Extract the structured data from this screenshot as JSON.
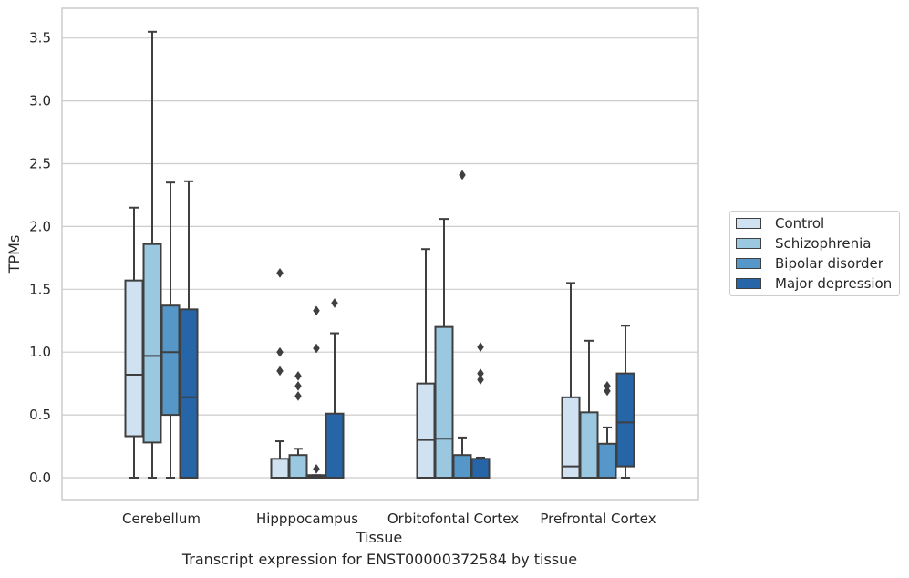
{
  "chart_data": {
    "type": "box",
    "title": "",
    "caption": "Transcript expression for ENST00000372584 by tissue",
    "xlabel": "Tissue",
    "ylabel": "TPMs",
    "ylim": [
      -0.17,
      3.68
    ],
    "yticks": [
      "0.0",
      "0.5",
      "1.0",
      "1.5",
      "2.0",
      "2.5",
      "3.0",
      "3.5"
    ],
    "grid": "horizontal",
    "legend_position": "right",
    "categories": [
      "Cerebellum",
      "Hipppocampus",
      "Orbitofontal Cortex",
      "Prefrontal Cortex"
    ],
    "series": [
      {
        "name": "Control",
        "color": "#d0e1f2",
        "boxes": [
          {
            "whislo": 0.0,
            "q1": 0.33,
            "med": 0.82,
            "q3": 1.57,
            "whishi": 2.15,
            "fliers": []
          },
          {
            "whislo": 0.0,
            "q1": 0.0,
            "med": 0.0,
            "q3": 0.15,
            "whishi": 0.29,
            "fliers": [
              0.85,
              1.0,
              1.63
            ]
          },
          {
            "whislo": 0.0,
            "q1": 0.0,
            "med": 0.3,
            "q3": 0.75,
            "whishi": 1.82,
            "fliers": []
          },
          {
            "whislo": 0.0,
            "q1": 0.0,
            "med": 0.09,
            "q3": 0.64,
            "whishi": 1.55,
            "fliers": []
          }
        ]
      },
      {
        "name": "Schizophrenia",
        "color": "#9ac8e0",
        "boxes": [
          {
            "whislo": 0.0,
            "q1": 0.28,
            "med": 0.97,
            "q3": 1.86,
            "whishi": 3.55,
            "fliers": []
          },
          {
            "whislo": 0.0,
            "q1": 0.0,
            "med": 0.0,
            "q3": 0.18,
            "whishi": 0.23,
            "fliers": [
              0.65,
              0.73,
              0.81
            ]
          },
          {
            "whislo": 0.0,
            "q1": 0.0,
            "med": 0.31,
            "q3": 1.2,
            "whishi": 2.06,
            "fliers": []
          },
          {
            "whislo": 0.0,
            "q1": 0.0,
            "med": 0.0,
            "q3": 0.52,
            "whishi": 1.09,
            "fliers": []
          }
        ]
      },
      {
        "name": "Bipolar disorder",
        "color": "#5597c8",
        "boxes": [
          {
            "whislo": 0.0,
            "q1": 0.5,
            "med": 1.0,
            "q3": 1.37,
            "whishi": 2.35,
            "fliers": []
          },
          {
            "whislo": 0.0,
            "q1": 0.0,
            "med": 0.01,
            "q3": 0.02,
            "whishi": 0.02,
            "fliers": [
              0.07,
              1.03,
              1.33
            ]
          },
          {
            "whislo": 0.0,
            "q1": 0.0,
            "med": 0.0,
            "q3": 0.18,
            "whishi": 0.32,
            "fliers": [
              2.41
            ]
          },
          {
            "whislo": 0.0,
            "q1": 0.0,
            "med": 0.0,
            "q3": 0.27,
            "whishi": 0.4,
            "fliers": [
              0.69,
              0.73
            ]
          }
        ]
      },
      {
        "name": "Major depression",
        "color": "#2565a8",
        "boxes": [
          {
            "whislo": 0.0,
            "q1": 0.0,
            "med": 0.64,
            "q3": 1.34,
            "whishi": 2.36,
            "fliers": []
          },
          {
            "whislo": 0.0,
            "q1": 0.0,
            "med": 0.0,
            "q3": 0.51,
            "whishi": 1.15,
            "fliers": [
              1.39
            ]
          },
          {
            "whislo": 0.0,
            "q1": 0.0,
            "med": 0.0,
            "q3": 0.15,
            "whishi": 0.16,
            "fliers": [
              0.78,
              0.83,
              1.04
            ]
          },
          {
            "whislo": 0.0,
            "q1": 0.09,
            "med": 0.44,
            "q3": 0.83,
            "whishi": 1.21,
            "fliers": []
          }
        ]
      }
    ]
  }
}
